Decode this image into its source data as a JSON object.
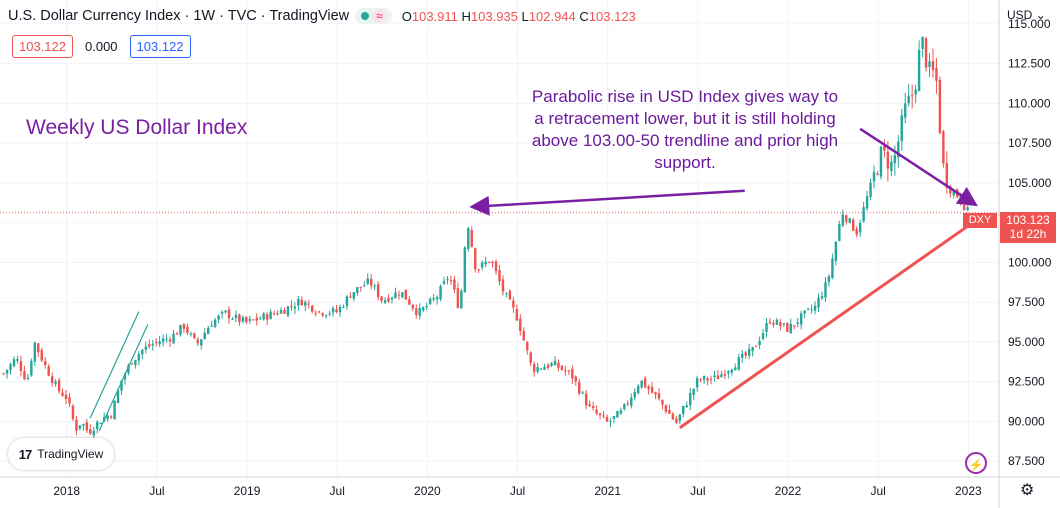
{
  "header": {
    "title": "U.S. Dollar Currency Index · 1W · TVC · TradingView",
    "wave": "≈",
    "ohlc": [
      {
        "k": "O",
        "v": "103.911"
      },
      {
        "k": "H",
        "v": "103.935"
      },
      {
        "k": "L",
        "v": "102.944"
      },
      {
        "k": "C",
        "v": "103.123"
      }
    ],
    "box_sell": "103.122",
    "box_spread": "0.000",
    "box_buy": "103.122"
  },
  "logo_text": "TradingView",
  "logo_mark": "17",
  "currency": "USD",
  "price_tag": {
    "symbol": "DXY",
    "price": "103.123",
    "countdown": "1d 22h"
  },
  "annotations": {
    "left": "Weekly US Dollar Index",
    "right": "Parabolic rise in USD Index gives way to a retracement lower, but it is still holding above 103.00-50 trendline and prior high support."
  },
  "colors": {
    "up": "#26a69a",
    "down": "#ef5350",
    "annotation": "#7b1fa2",
    "trendline": "#ef5350"
  },
  "chart_data": {
    "type": "candlestick",
    "frequency": "weekly",
    "x_ticks": [
      "2018",
      "Jul",
      "2019",
      "Jul",
      "2020",
      "Jul",
      "2021",
      "Jul",
      "2022",
      "Jul",
      "2023"
    ],
    "x_tick_dates": [
      2018.0,
      2018.5,
      2019.0,
      2019.5,
      2020.0,
      2020.5,
      2021.0,
      2021.5,
      2022.0,
      2022.5,
      2023.0
    ],
    "y_ticks": [
      "87.500",
      "90.000",
      "92.500",
      "95.000",
      "97.500",
      "100.000",
      "102.500",
      "105.000",
      "107.500",
      "110.000",
      "112.500",
      "115.000"
    ],
    "ylim": [
      86.5,
      116.5
    ],
    "xlim": [
      2017.63,
      2023.17
    ],
    "last_close": 103.123,
    "path": [
      [
        2017.65,
        93.0
      ],
      [
        2017.72,
        94.0
      ],
      [
        2017.78,
        92.5
      ],
      [
        2017.82,
        95.0
      ],
      [
        2017.88,
        93.5
      ],
      [
        2017.95,
        92.0
      ],
      [
        2018.0,
        91.5
      ],
      [
        2018.05,
        89.5
      ],
      [
        2018.08,
        90.0
      ],
      [
        2018.12,
        89.3
      ],
      [
        2018.16,
        89.8
      ],
      [
        2018.2,
        90.2
      ],
      [
        2018.25,
        90.5
      ],
      [
        2018.3,
        92.5
      ],
      [
        2018.36,
        93.8
      ],
      [
        2018.42,
        94.5
      ],
      [
        2018.5,
        95.0
      ],
      [
        2018.58,
        95.3
      ],
      [
        2018.65,
        96.0
      ],
      [
        2018.72,
        94.8
      ],
      [
        2018.8,
        96.2
      ],
      [
        2018.88,
        96.8
      ],
      [
        2018.95,
        96.4
      ],
      [
        2019.0,
        96.2
      ],
      [
        2019.1,
        96.6
      ],
      [
        2019.2,
        97.0
      ],
      [
        2019.3,
        97.6
      ],
      [
        2019.4,
        96.9
      ],
      [
        2019.5,
        96.9
      ],
      [
        2019.58,
        98.1
      ],
      [
        2019.68,
        98.8
      ],
      [
        2019.75,
        97.6
      ],
      [
        2019.85,
        98.2
      ],
      [
        2019.95,
        96.8
      ],
      [
        2020.05,
        97.8
      ],
      [
        2020.12,
        99.2
      ],
      [
        2020.18,
        97.0
      ],
      [
        2020.22,
        102.8
      ],
      [
        2020.27,
        99.5
      ],
      [
        2020.35,
        100.2
      ],
      [
        2020.42,
        98.2
      ],
      [
        2020.5,
        96.5
      ],
      [
        2020.58,
        93.3
      ],
      [
        2020.7,
        93.6
      ],
      [
        2020.8,
        92.9
      ],
      [
        2020.9,
        90.8
      ],
      [
        2021.0,
        89.9
      ],
      [
        2021.08,
        90.6
      ],
      [
        2021.18,
        92.6
      ],
      [
        2021.28,
        91.4
      ],
      [
        2021.38,
        89.9
      ],
      [
        2021.5,
        92.6
      ],
      [
        2021.6,
        92.7
      ],
      [
        2021.7,
        93.6
      ],
      [
        2021.8,
        94.4
      ],
      [
        2021.9,
        96.4
      ],
      [
        2022.0,
        95.8
      ],
      [
        2022.08,
        96.6
      ],
      [
        2022.15,
        97.2
      ],
      [
        2022.22,
        98.8
      ],
      [
        2022.3,
        103.2
      ],
      [
        2022.38,
        101.9
      ],
      [
        2022.45,
        104.5
      ],
      [
        2022.52,
        106.9
      ],
      [
        2022.58,
        106.0
      ],
      [
        2022.65,
        109.6
      ],
      [
        2022.7,
        110.8
      ],
      [
        2022.74,
        114.1
      ],
      [
        2022.78,
        112.0
      ],
      [
        2022.82,
        111.8
      ],
      [
        2022.86,
        106.0
      ],
      [
        2022.9,
        104.6
      ],
      [
        2022.94,
        104.2
      ],
      [
        2022.98,
        103.5
      ],
      [
        2023.0,
        103.12
      ]
    ],
    "trendlines": [
      {
        "color": "#ef5350",
        "from": [
          2021.4,
          89.6
        ],
        "to": [
          2023.05,
          102.7
        ]
      },
      {
        "color": "#26a69a",
        "from": [
          2018.18,
          89.4
        ],
        "to": [
          2018.45,
          96.1
        ]
      },
      {
        "color": "#26a69a",
        "from": [
          2018.13,
          90.2
        ],
        "to": [
          2018.4,
          96.9
        ]
      }
    ],
    "arrows": [
      {
        "from": [
          2021.76,
          104.5
        ],
        "to": [
          2020.26,
          103.5
        ]
      },
      {
        "from": [
          2022.4,
          108.4
        ],
        "to": [
          2023.03,
          103.7
        ]
      }
    ]
  }
}
